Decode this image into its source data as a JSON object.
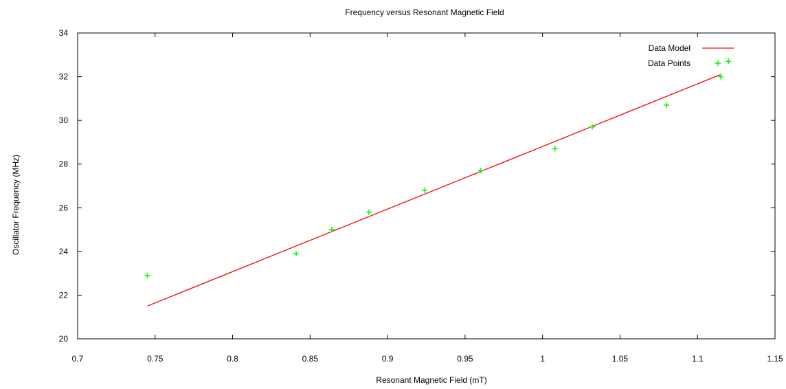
{
  "chart_data": {
    "type": "scatter",
    "title": "Frequency versus Resonant Magnetic Field",
    "xlabel": "Resonant Magnetic Field (mT)",
    "ylabel": "Oscillator Frequency (MHz)",
    "xlim": [
      0.7,
      1.15
    ],
    "ylim": [
      20,
      34
    ],
    "x_ticks": [
      0.7,
      0.75,
      0.8,
      0.85,
      0.9,
      0.95,
      1,
      1.05,
      1.1,
      1.15
    ],
    "x_tick_labels": [
      "0.7",
      "0.75",
      "0.8",
      "0.85",
      "0.9",
      "0.95",
      "1",
      "1.05",
      "1.1",
      "1.15"
    ],
    "y_ticks": [
      20,
      22,
      24,
      26,
      28,
      30,
      32,
      34
    ],
    "y_tick_labels": [
      "20",
      "22",
      "24",
      "26",
      "28",
      "30",
      "32",
      "34"
    ],
    "grid": false,
    "legend_position": "top-right",
    "series": [
      {
        "name": "Data Model",
        "kind": "line",
        "color": "#ff0000",
        "x": [
          0.745,
          1.115
        ],
        "y": [
          21.5,
          32.1
        ]
      },
      {
        "name": "Data Points",
        "kind": "points",
        "marker": "+",
        "color": "#00ff00",
        "x": [
          0.745,
          0.841,
          0.864,
          0.888,
          0.924,
          0.96,
          1.008,
          1.032,
          1.08,
          1.115,
          1.12
        ],
        "y": [
          22.9,
          23.9,
          25.0,
          25.8,
          26.8,
          27.7,
          28.7,
          29.7,
          30.7,
          32.0,
          32.7
        ]
      }
    ]
  }
}
